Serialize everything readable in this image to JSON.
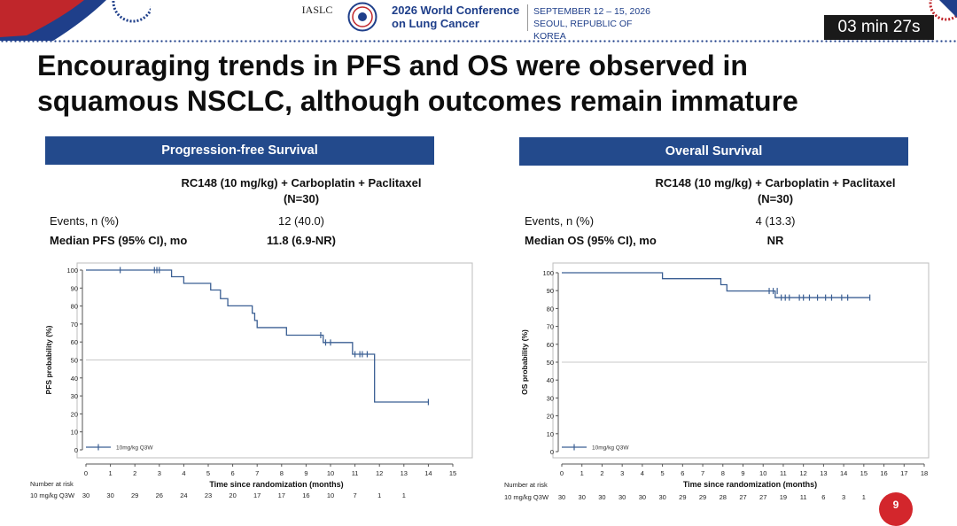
{
  "header": {
    "org": "IASLC",
    "conference_line1": "2026 World Conference",
    "conference_line2": "on Lung Cancer",
    "dates": "SEPTEMBER 12 – 15, 2026",
    "location": "SEOUL, REPUBLIC OF KOREA",
    "timer": "03 min 27s"
  },
  "slide": {
    "title_line1": "Encouraging trends in PFS and OS were observed in",
    "title_line2": "squamous NSCLC, although outcomes remain immature",
    "page_number": "9"
  },
  "colors": {
    "banner": "#234a8c",
    "curve": "#3b5f93",
    "accent_red": "#d3262c"
  },
  "pfs": {
    "banner": "Progression-free Survival",
    "treatment_line1": "RC148 (10 mg/kg) + Carboplatin + Paclitaxel",
    "treatment_line2": "(N=30)",
    "events_label": "Events, n (%)",
    "events_value": "12 (40.0)",
    "median_label": "Median PFS (95% CI), mo",
    "median_value": "11.8 (6.9-NR)"
  },
  "os": {
    "banner": "Overall Survival",
    "treatment_line1": "RC148 (10 mg/kg) + Carboplatin + Paclitaxel",
    "treatment_line2": "(N=30)",
    "events_label": "Events, n (%)",
    "events_value": "4 (13.3)",
    "median_label": "Median OS (95% CI), mo",
    "median_value": "NR"
  },
  "chart_data": [
    {
      "type": "line",
      "ylabel": "PFS probability (%)",
      "xlabel": "Time since randomization (months)",
      "xlim": [
        0,
        15
      ],
      "ylim": [
        0,
        100
      ],
      "x_ticks": [
        0,
        1,
        2,
        3,
        4,
        5,
        6,
        7,
        8,
        9,
        10,
        11,
        12,
        13,
        14,
        15
      ],
      "y_ticks": [
        0,
        10,
        20,
        30,
        40,
        50,
        60,
        70,
        80,
        90,
        100
      ],
      "reference_line": 50,
      "legend": "10mg/kg Q3W",
      "series": [
        {
          "name": "10mg/kg Q3W",
          "step_points": [
            [
              0,
              100
            ],
            [
              2.9,
              100
            ],
            [
              3.5,
              96.3
            ],
            [
              4.0,
              92.6
            ],
            [
              5.1,
              88.9
            ],
            [
              5.5,
              84.1
            ],
            [
              5.8,
              80.1
            ],
            [
              6.8,
              76
            ],
            [
              6.9,
              72
            ],
            [
              7.0,
              68
            ],
            [
              8.2,
              63.8
            ],
            [
              9.7,
              59.7
            ],
            [
              10.9,
              53.2
            ],
            [
              11.8,
              26.6
            ],
            [
              14.0,
              26.6
            ]
          ],
          "censor_points": [
            [
              1.4,
              100
            ],
            [
              2.8,
              100
            ],
            [
              2.9,
              100
            ],
            [
              3.0,
              100
            ],
            [
              9.6,
              63.8
            ],
            [
              9.8,
              59.7
            ],
            [
              10.0,
              59.7
            ],
            [
              11.0,
              53.2
            ],
            [
              11.2,
              53.2
            ],
            [
              11.3,
              53.2
            ],
            [
              11.5,
              53.2
            ],
            [
              14.0,
              26.6
            ]
          ]
        }
      ],
      "risk_table": {
        "title": "Number at risk",
        "row_label": "10 mg/kg Q3W",
        "values": [
          "30",
          "30",
          "29",
          "26",
          "24",
          "23",
          "20",
          "17",
          "17",
          "16",
          "10",
          "7",
          "1",
          "1"
        ]
      }
    },
    {
      "type": "line",
      "ylabel": "OS probability (%)",
      "xlabel": "Time since randomization (months)",
      "xlim": [
        0,
        18
      ],
      "ylim": [
        0,
        100
      ],
      "x_ticks": [
        0,
        1,
        2,
        3,
        4,
        5,
        6,
        7,
        8,
        9,
        10,
        11,
        12,
        13,
        14,
        15,
        16,
        17,
        18
      ],
      "y_ticks": [
        0,
        10,
        20,
        30,
        40,
        50,
        60,
        70,
        80,
        90,
        100
      ],
      "reference_line": 50,
      "legend": "10mg/kg Q3W",
      "series": [
        {
          "name": "10mg/kg Q3W",
          "step_points": [
            [
              0,
              100
            ],
            [
              5.0,
              96.7
            ],
            [
              7.9,
              93.3
            ],
            [
              8.2,
              89.8
            ],
            [
              10.6,
              86.1
            ],
            [
              15.3,
              86.1
            ]
          ],
          "censor_points": [
            [
              10.3,
              89.8
            ],
            [
              10.5,
              89.8
            ],
            [
              10.7,
              89.8
            ],
            [
              10.9,
              86.1
            ],
            [
              11.1,
              86.1
            ],
            [
              11.3,
              86.1
            ],
            [
              11.8,
              86.1
            ],
            [
              12.0,
              86.1
            ],
            [
              12.3,
              86.1
            ],
            [
              12.7,
              86.1
            ],
            [
              13.1,
              86.1
            ],
            [
              13.4,
              86.1
            ],
            [
              13.9,
              86.1
            ],
            [
              14.2,
              86.1
            ],
            [
              15.3,
              86.1
            ]
          ]
        }
      ],
      "risk_table": {
        "title": "Number at risk",
        "row_label": "10 mg/kg Q3W",
        "values": [
          "30",
          "30",
          "30",
          "30",
          "30",
          "30",
          "29",
          "29",
          "28",
          "27",
          "27",
          "19",
          "11",
          "6",
          "3",
          "1"
        ]
      }
    }
  ]
}
